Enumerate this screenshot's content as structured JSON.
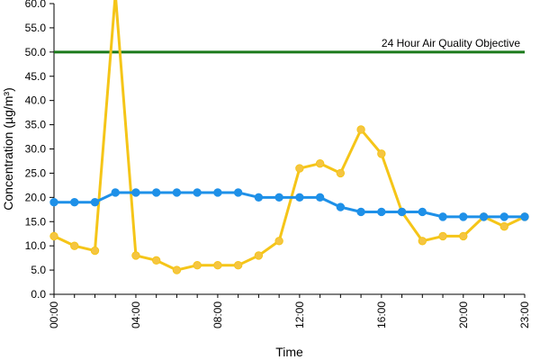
{
  "chart_data": {
    "type": "line",
    "title": "",
    "xlabel": "Time",
    "ylabel": "Concentration (µg/m³)",
    "ylim": [
      0,
      60
    ],
    "y_ticks": [
      "0.0",
      "5.0",
      "10.0",
      "15.0",
      "20.0",
      "25.0",
      "30.0",
      "35.0",
      "40.0",
      "45.0",
      "50.0",
      "55.0",
      "60.0"
    ],
    "x_tick_labels": [
      "00:00",
      "04:00",
      "08:00",
      "12:00",
      "16:00",
      "20:00",
      "23:00"
    ],
    "x": [
      0,
      1,
      2,
      3,
      4,
      5,
      6,
      7,
      8,
      9,
      10,
      11,
      12,
      13,
      14,
      15,
      16,
      17,
      18,
      19,
      20,
      21,
      22,
      23
    ],
    "x_unit": "hour",
    "grid": false,
    "series": [
      {
        "color": "#F5C518",
        "marker_fill": "#F5C542",
        "values": [
          12,
          10,
          9,
          62,
          8,
          7,
          5,
          6,
          6,
          6,
          8,
          11,
          26,
          27,
          25,
          34,
          29,
          17,
          11,
          12,
          12,
          16,
          14,
          16
        ]
      },
      {
        "color": "#1E90E8",
        "marker_fill": "#1E90E8",
        "values": [
          19,
          19,
          19,
          21,
          21,
          21,
          21,
          21,
          21,
          21,
          20,
          20,
          20,
          20,
          18,
          17,
          17,
          17,
          17,
          16,
          16,
          16,
          16,
          16
        ]
      }
    ],
    "reference_line": {
      "label": "24 Hour Air Quality Objective",
      "value": 50,
      "color": "#1B7A1B"
    }
  }
}
